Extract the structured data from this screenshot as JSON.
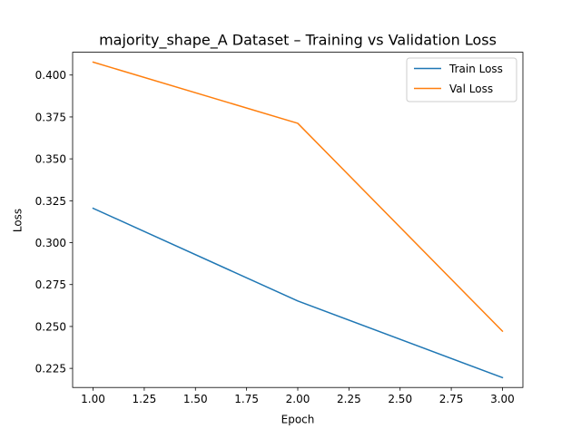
{
  "chart_data": {
    "type": "line",
    "title": "majority_shape_A Dataset – Training vs Validation Loss",
    "xlabel": "Epoch",
    "ylabel": "Loss",
    "x": [
      1.0,
      2.0,
      3.0
    ],
    "series": [
      {
        "name": "Train Loss",
        "color": "#1f77b4",
        "values": [
          0.3205,
          0.2652,
          0.2195
        ]
      },
      {
        "name": "Val Loss",
        "color": "#ff7f0e",
        "values": [
          0.4077,
          0.3712,
          0.2472
        ]
      }
    ],
    "xlim": [
      0.9,
      3.1
    ],
    "ylim": [
      0.2136,
      0.4136
    ],
    "xticks": [
      1.0,
      1.25,
      1.5,
      1.75,
      2.0,
      2.25,
      2.5,
      2.75,
      3.0
    ],
    "xtick_labels": [
      "1.00",
      "1.25",
      "1.50",
      "1.75",
      "2.00",
      "2.25",
      "2.50",
      "2.75",
      "3.00"
    ],
    "yticks": [
      0.225,
      0.25,
      0.275,
      0.3,
      0.325,
      0.35,
      0.375,
      0.4
    ],
    "ytick_labels": [
      "0.225",
      "0.250",
      "0.275",
      "0.300",
      "0.325",
      "0.350",
      "0.375",
      "0.400"
    ],
    "grid": false,
    "legend_position": "top-right"
  }
}
